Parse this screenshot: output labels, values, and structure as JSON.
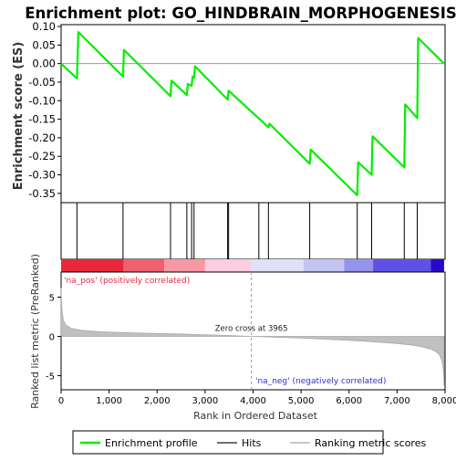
{
  "chart_data": {
    "type": "line",
    "title": "Enrichment plot: GO_HINDBRAIN_MORPHOGENESIS",
    "es_panel": {
      "ylabel": "Enrichment score (ES)",
      "ylim": [
        -0.375,
        0.105
      ],
      "yticks": [
        0.1,
        0.05,
        0.0,
        -0.05,
        -0.1,
        -0.15,
        -0.2,
        -0.25,
        -0.3,
        -0.35
      ],
      "ytick_labels": [
        "0.10",
        "0.05",
        "0.00",
        "-0.05",
        "-0.10",
        "-0.15",
        "-0.20",
        "-0.25",
        "-0.30",
        "-0.35"
      ],
      "grid": false,
      "series": [
        {
          "name": "Enrichment profile",
          "color": "#00ee00",
          "x": [
            0,
            330,
            360,
            1290,
            1310,
            2280,
            2300,
            2620,
            2640,
            2720,
            2740,
            2770,
            2790,
            3470,
            3490,
            4120,
            4140,
            4320,
            4340,
            5180,
            5200,
            6170,
            6190,
            6470,
            6490,
            7150,
            7170,
            7420,
            7440,
            7980
          ],
          "y": [
            0.0,
            -0.04,
            0.085,
            -0.035,
            0.037,
            -0.088,
            -0.046,
            -0.085,
            -0.055,
            -0.06,
            -0.035,
            -0.038,
            -0.007,
            -0.097,
            -0.073,
            -0.148,
            -0.15,
            -0.172,
            -0.162,
            -0.27,
            -0.232,
            -0.355,
            -0.266,
            -0.3,
            -0.196,
            -0.28,
            -0.11,
            -0.147,
            0.069,
            0.0
          ]
        }
      ]
    },
    "hits": {
      "name": "Hits",
      "positions": [
        330,
        1290,
        2280,
        2620,
        2720,
        2770,
        3470,
        3490,
        4120,
        4320,
        5180,
        6170,
        6470,
        7150,
        7420
      ]
    },
    "rank_bar": {
      "colors": [
        "#e8283c",
        "#f06070",
        "#f898a4",
        "#fccce0",
        "#e0e0f8",
        "#c4c4f4",
        "#9494ec",
        "#6050e8",
        "#2808c8"
      ],
      "breaks": [
        0,
        1300,
        2150,
        3000,
        3950,
        5050,
        5900,
        6500,
        7700,
        7980
      ]
    },
    "rank_panel": {
      "ylabel": "Ranked list metric (PreRanked)",
      "xlabel": "Rank in Ordered Dataset",
      "xlim": [
        0,
        8000
      ],
      "ylim": [
        -6.8,
        8.2
      ],
      "yticks": [
        5,
        0,
        -5
      ],
      "ytick_labels": [
        "5",
        "0",
        "-5"
      ],
      "xticks": [
        0,
        1000,
        2000,
        3000,
        4000,
        5000,
        6000,
        7000,
        8000
      ],
      "xtick_labels": [
        "0",
        "1,000",
        "2,000",
        "3,000",
        "4,000",
        "5,000",
        "6,000",
        "7,000",
        "8,000"
      ],
      "series": [
        {
          "name": "Ranking metric scores",
          "color": "#c0c0c0",
          "x": [
            0,
            10,
            25,
            50,
            100,
            200,
            400,
            800,
            1500,
            2500,
            3500,
            3965,
            5000,
            6000,
            6500,
            7000,
            7300,
            7500,
            7700,
            7800,
            7880,
            7930,
            7960,
            7975,
            7980
          ],
          "y": [
            6.2,
            4.2,
            3.0,
            2.0,
            1.45,
            1.05,
            0.8,
            0.6,
            0.45,
            0.3,
            0.12,
            0.0,
            -0.22,
            -0.5,
            -0.68,
            -0.9,
            -1.1,
            -1.3,
            -1.6,
            -1.9,
            -2.3,
            -3.0,
            -4.0,
            -5.2,
            -6.3
          ]
        }
      ],
      "zero_cross_label": "Zero cross at 3965",
      "zero_cross": 3965,
      "pos_label": "'na_pos' (positively correlated)",
      "neg_label": "'na_neg' (negatively correlated)"
    },
    "legend": {
      "placement": "bottom",
      "items": [
        {
          "label": "Enrichment profile",
          "color": "#00ee00"
        },
        {
          "label": "Hits",
          "color": "#707070"
        },
        {
          "label": "Ranking metric scores",
          "color": "#c8c8c8"
        }
      ]
    }
  }
}
